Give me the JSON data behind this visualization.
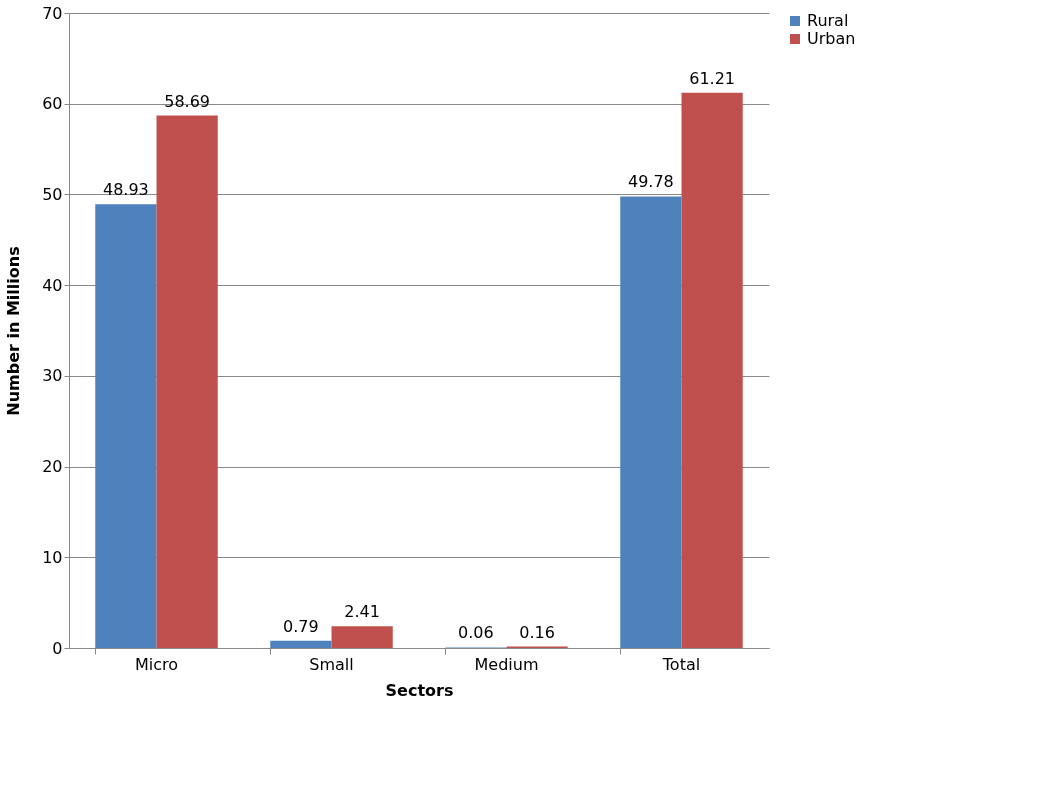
{
  "chart_data": {
    "type": "bar",
    "xlabel": "Sectors",
    "ylabel": "Number in Millions",
    "categories": [
      "Micro",
      "Small",
      "Medium",
      "Total"
    ],
    "series": [
      {
        "name": "Rural",
        "color": "#4f81bd",
        "values": [
          48.93,
          0.79,
          0.06,
          49.78
        ]
      },
      {
        "name": "Urban",
        "color": "#c0504d",
        "values": [
          58.69,
          2.41,
          0.16,
          61.21
        ]
      }
    ],
    "ylim": [
      0,
      70
    ],
    "yticks": [
      0,
      10,
      20,
      30,
      40,
      50,
      60,
      70
    ],
    "grid": "y",
    "legend": "right",
    "data_labels": true
  }
}
